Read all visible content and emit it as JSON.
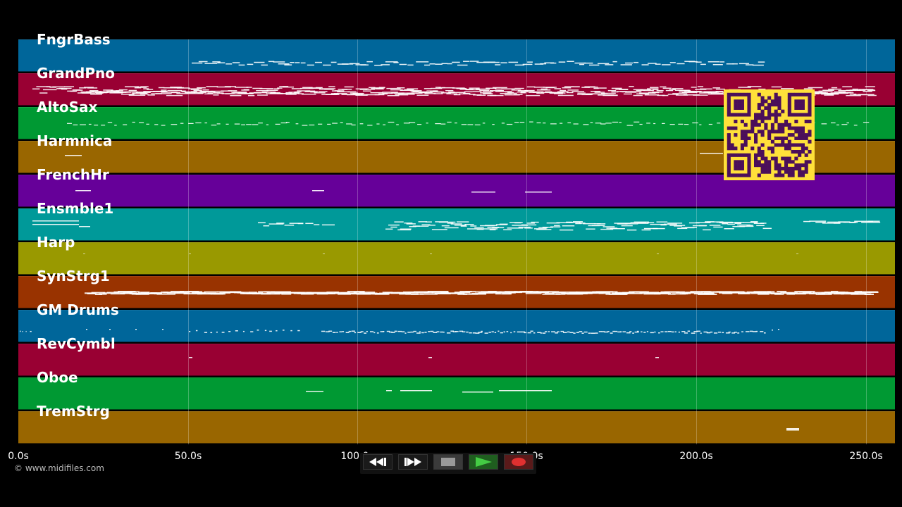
{
  "tracks": [
    {
      "name": "FngrBass",
      "color": "#00669a"
    },
    {
      "name": "GrandPno",
      "color": "#990033"
    },
    {
      "name": "AltoSax",
      "color": "#009933"
    },
    {
      "name": "Harmnica",
      "color": "#996600"
    },
    {
      "name": "FrenchHr",
      "color": "#660099"
    },
    {
      "name": "Ensmble1",
      "color": "#009999"
    },
    {
      "name": "Harp",
      "color": "#999900"
    },
    {
      "name": "SynStrg1",
      "color": "#993300"
    },
    {
      "name": "GM Drums",
      "color": "#00669a"
    },
    {
      "name": "RevCymbl",
      "color": "#990033"
    },
    {
      "name": "Oboe",
      "color": "#009933"
    },
    {
      "name": "TremStrg",
      "color": "#996600"
    }
  ],
  "timeline": {
    "max_seconds": 258,
    "ticks": [
      {
        "seconds": 0,
        "label": "0.0s"
      },
      {
        "seconds": 50,
        "label": "50.0s"
      },
      {
        "seconds": 100,
        "label": "100.0s"
      },
      {
        "seconds": 150,
        "label": "150.0s"
      },
      {
        "seconds": 200,
        "label": "200.0s"
      },
      {
        "seconds": 250,
        "label": "250.0s"
      }
    ]
  },
  "copyright": "© www.midifiles.com",
  "controls": [
    {
      "name": "rewind-button",
      "icon": "rewind-icon"
    },
    {
      "name": "fast-forward-button",
      "icon": "fast-forward-icon"
    },
    {
      "name": "stop-button",
      "icon": "stop-icon"
    },
    {
      "name": "play-button",
      "icon": "play-icon"
    },
    {
      "name": "record-button",
      "icon": "record-icon"
    }
  ],
  "qr_code": {
    "icon": "qr-code-icon",
    "fg": "#4b0f5a",
    "bg": "#ffe03a"
  }
}
